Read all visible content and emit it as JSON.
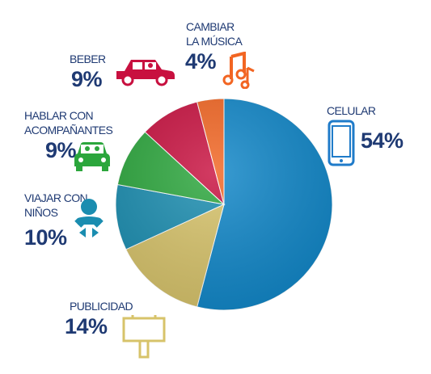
{
  "chart_data": {
    "type": "pie",
    "title": "",
    "slices": [
      {
        "label": "CELULAR",
        "value": 54,
        "pct_label": "54%",
        "color": "#0f86c8",
        "icon": "cellphone-icon"
      },
      {
        "label": "PUBLICIDAD",
        "value": 14,
        "pct_label": "14%",
        "color": "#d7c36a",
        "icon": "billboard-icon"
      },
      {
        "label": "VIAJAR CON NIÑOS",
        "value": 10,
        "pct_label": "10%",
        "color": "#1a8db0",
        "icon": "baby-icon"
      },
      {
        "label": "HABLAR CON ACOMPAÑANTES",
        "value": 9,
        "pct_label": "9%",
        "color": "#2ba63c",
        "icon": "car-passengers-icon"
      },
      {
        "label": "BEBER",
        "value": 9,
        "pct_label": "9%",
        "color": "#c8103f",
        "icon": "car-drinking-icon"
      },
      {
        "label": "CAMBIAR LA MÚSICA",
        "value": 4,
        "pct_label": "4%",
        "color": "#f26522",
        "icon": "music-notes-icon"
      }
    ]
  },
  "labels": {
    "celular": {
      "name": "CELULAR",
      "pct": "54%"
    },
    "publicidad": {
      "name": "PUBLICIDAD",
      "pct": "14%"
    },
    "ninos": {
      "line1": "VIAJAR CON",
      "line2": "NIÑOS",
      "pct": "10%"
    },
    "hablar": {
      "line1": "HABLAR CON",
      "line2": "ACOMPAÑANTES",
      "pct": "9%"
    },
    "beber": {
      "name": "BEBER",
      "pct": "9%"
    },
    "musica": {
      "line1": "CAMBIAR",
      "line2": "LA MÚSICA",
      "pct": "4%"
    }
  },
  "colors": {
    "text": "#1f3a73"
  }
}
